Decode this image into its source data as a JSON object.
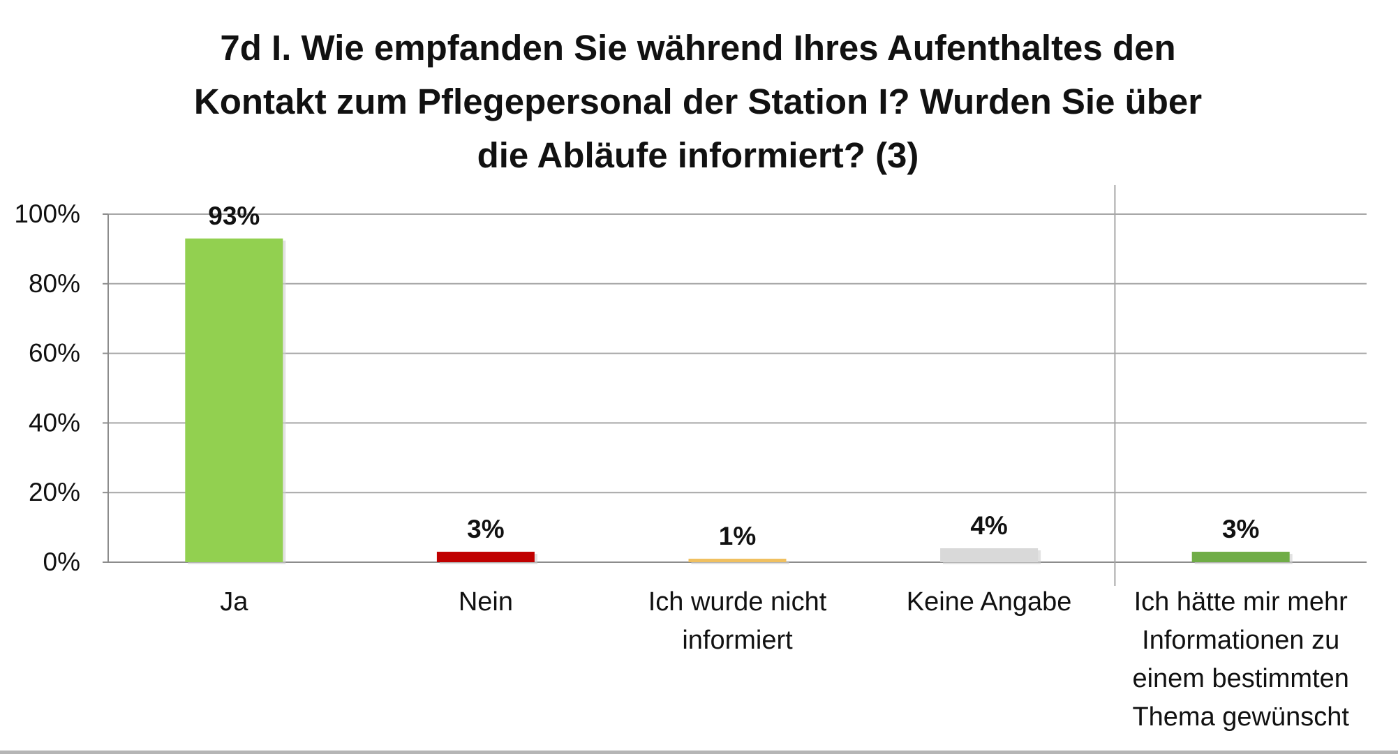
{
  "title_lines": [
    "7d I. Wie empfanden Sie während Ihres Aufenthaltes den",
    "Kontakt zum Pflegepersonal der Station I? Wurden Sie über",
    "die Abläufe informiert? (3)"
  ],
  "chart_data": {
    "type": "bar",
    "title": "7d I. Wie empfanden Sie während Ihres Aufenthaltes den Kontakt zum Pflegepersonal der Station I? Wurden Sie über die Abläufe informiert? (3)",
    "categories": [
      [
        "Ja"
      ],
      [
        "Nein"
      ],
      [
        "Ich wurde nicht",
        "informiert"
      ],
      [
        "Keine Angabe"
      ],
      [
        "Ich hätte mir mehr",
        "Informationen zu",
        "einem bestimmten",
        "Thema gewünscht"
      ]
    ],
    "values": [
      93,
      3,
      1,
      4,
      3
    ],
    "value_labels": [
      "93%",
      "3%",
      "1%",
      "4%",
      "3%"
    ],
    "colors": [
      "#92d050",
      "#c00000",
      "#f0c060",
      "#d9d9d9",
      "#70ad47"
    ],
    "ylim": [
      0,
      100
    ],
    "yticks": [
      0,
      20,
      40,
      60,
      80,
      100
    ],
    "ytick_labels": [
      "0%",
      "20%",
      "40%",
      "60%",
      "80%",
      "100%"
    ],
    "xlabel": "",
    "ylabel": "",
    "grid": true,
    "legend": "none",
    "separator_before_index": 4
  }
}
